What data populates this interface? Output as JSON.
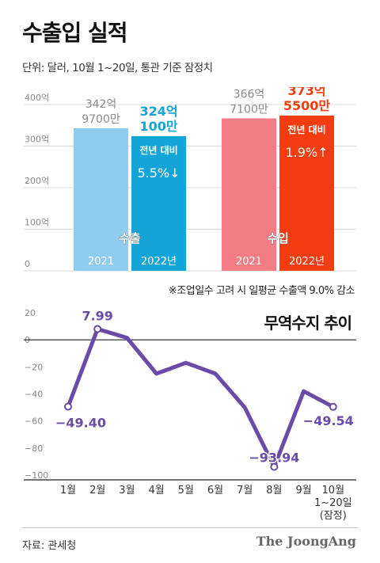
{
  "title": "수출입 실적",
  "unit_note": "단위: 달러, 10월 1~20일, 통관 기준 잠정치",
  "footnote": "※조업일수 고려 시 일평균 수출액 9.0% 감소",
  "line_title": "무역수지 추이",
  "source": "자료: 관세청",
  "brand": "The JoongAng",
  "colors": {
    "export_2021": "#8ecdf0",
    "export_2022": "#14a5d8",
    "import_2021": "#f47c85",
    "import_2022": "#f23d10",
    "export_label": "#14a5d8",
    "import_label": "#f23d10",
    "line": "#6a4ba8",
    "axis_text": "#888888"
  },
  "chart_data": [
    {
      "type": "bar",
      "ylim": [
        0,
        400
      ],
      "yticks": [
        "0",
        "100억",
        "200억",
        "300억",
        "400억"
      ],
      "groups": [
        {
          "name": "수출",
          "bars": [
            {
              "year_label": "2021",
              "value": 342.97,
              "value_label": [
                "342억",
                "9700만"
              ],
              "color_key": "export_2021"
            },
            {
              "year_label": "2022년",
              "value": 324.01,
              "value_label": [
                "324억",
                "100만"
              ],
              "color_key": "export_2022",
              "change_label": "전년 대비",
              "change_value": "5.5%↓"
            }
          ]
        },
        {
          "name": "수입",
          "bars": [
            {
              "year_label": "2021",
              "value": 366.71,
              "value_label": [
                "366억",
                "7100만"
              ],
              "color_key": "import_2021"
            },
            {
              "year_label": "2022년",
              "value": 373.55,
              "value_label": [
                "373억",
                "5500만"
              ],
              "color_key": "import_2022",
              "change_label": "전년 대비",
              "change_value": "1.9%↑"
            }
          ]
        }
      ]
    },
    {
      "type": "line",
      "ylim": [
        -100,
        20
      ],
      "yticks": [
        20,
        0,
        -20,
        -40,
        -60,
        -80,
        -100
      ],
      "categories": [
        "1월",
        "2월",
        "3월",
        "4월",
        "5월",
        "6월",
        "7월",
        "8월",
        "9월",
        "10월"
      ],
      "last_category_sub": [
        "1~20일",
        "(잠정)"
      ],
      "values": [
        -49.4,
        7.99,
        1.5,
        -25,
        -17,
        -25,
        -50,
        -93.94,
        -38,
        -49.54
      ],
      "value_labels": {
        "0": "−49.40",
        "1": "7.99",
        "7": "−93.94",
        "9": "−49.54"
      }
    }
  ]
}
